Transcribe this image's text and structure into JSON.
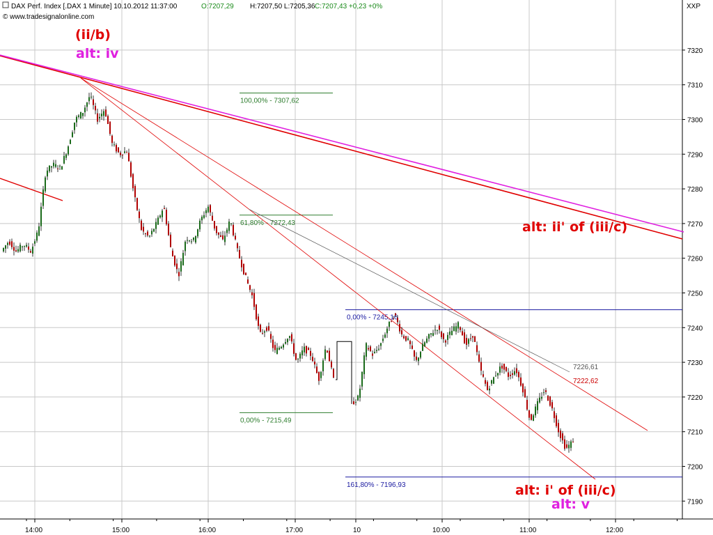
{
  "header": {
    "symbol": "DAX Perf. Index [.DAX  1 Minute] 10.10.2012 11:37:00",
    "open": "O:7207,29",
    "hl": "H:7207,50  L:7205,36",
    "close": "C:7207,43 +0,23 +0%",
    "watermark": "© www.tradesignalonline.com",
    "instrument_code": "XXP"
  },
  "chart_data": {
    "type": "candlestick",
    "title": "DAX Perf. Index [.DAX  1 Minute] 10.10.2012 11:37:00",
    "ylim": [
      7185,
      7333
    ],
    "y_ticks": [
      7190,
      7200,
      7210,
      7220,
      7230,
      7240,
      7250,
      7260,
      7270,
      7280,
      7290,
      7300,
      7310,
      7320
    ],
    "x_tick_labels": [
      "14:00",
      "15:00",
      "16:00",
      "17:00",
      "10",
      "10:00",
      "11:00",
      "12:00"
    ],
    "grid": true,
    "price_path": [
      [
        "13:45",
        7262
      ],
      [
        "13:52",
        7265
      ],
      [
        "14:00",
        7262
      ],
      [
        "14:07",
        7264
      ],
      [
        "14:12",
        7262
      ],
      [
        "14:17",
        7268
      ],
      [
        "14:20",
        7285
      ],
      [
        "14:23",
        7287
      ],
      [
        "14:28",
        7286
      ],
      [
        "14:32",
        7292
      ],
      [
        "14:38",
        7300
      ],
      [
        "14:43",
        7302
      ],
      [
        "14:47",
        7307
      ],
      [
        "14:52",
        7300
      ],
      [
        "14:58",
        7303
      ],
      [
        "15:05",
        7293
      ],
      [
        "15:12",
        7290
      ],
      [
        "15:18",
        7291
      ],
      [
        "15:22",
        7278
      ],
      [
        "15:27",
        7268
      ],
      [
        "15:32",
        7266
      ],
      [
        "15:37",
        7270
      ],
      [
        "15:42",
        7275
      ],
      [
        "15:46",
        7262
      ],
      [
        "15:50",
        7255
      ],
      [
        "15:55",
        7266
      ],
      [
        "16:00",
        7265
      ],
      [
        "16:05",
        7271
      ],
      [
        "16:10",
        7275
      ],
      [
        "16:15",
        7268
      ],
      [
        "16:20",
        7265
      ],
      [
        "16:25",
        7271
      ],
      [
        "16:30",
        7262
      ],
      [
        "16:35",
        7255
      ],
      [
        "16:40",
        7249
      ],
      [
        "16:45",
        7238
      ],
      [
        "16:50",
        7240
      ],
      [
        "16:55",
        7233
      ],
      [
        "17:00",
        7235
      ],
      [
        "17:05",
        7238
      ],
      [
        "17:10",
        7230
      ],
      [
        "17:15",
        7234
      ],
      [
        "17:20",
        7232
      ],
      [
        "17:25",
        7225
      ],
      [
        "17:30",
        7235
      ],
      [
        "17:33",
        7225
      ],
      [
        "10:00 gap",
        7218
      ],
      [
        "09:05",
        7220
      ],
      [
        "09:10",
        7235
      ],
      [
        "09:15",
        7232
      ],
      [
        "09:20",
        7235
      ],
      [
        "09:25",
        7240
      ],
      [
        "09:30",
        7244
      ],
      [
        "09:35",
        7238
      ],
      [
        "09:40",
        7236
      ],
      [
        "09:45",
        7230
      ],
      [
        "09:50",
        7235
      ],
      [
        "09:55",
        7238
      ],
      [
        "10:00",
        7240
      ],
      [
        "10:05",
        7236
      ],
      [
        "10:10",
        7239
      ],
      [
        "10:15",
        7241
      ],
      [
        "10:20",
        7235
      ],
      [
        "10:25",
        7238
      ],
      [
        "10:30",
        7228
      ],
      [
        "10:35",
        7222
      ],
      [
        "10:40",
        7226
      ],
      [
        "10:45",
        7229
      ],
      [
        "10:50",
        7226
      ],
      [
        "10:55",
        7228
      ],
      [
        "11:00",
        7222
      ],
      [
        "11:05",
        7213
      ],
      [
        "11:10",
        7218
      ],
      [
        "11:15",
        7222
      ],
      [
        "11:20",
        7217
      ],
      [
        "11:25",
        7210
      ],
      [
        "11:30",
        7205
      ],
      [
        "11:37",
        7207.43
      ]
    ],
    "fib_levels": [
      {
        "label": "100,00% - 7307,62",
        "value": 7307.62,
        "color": "#2e7d2e"
      },
      {
        "label": "61,80% - 7272,43",
        "value": 7272.43,
        "color": "#2e7d2e"
      },
      {
        "label": "0,00% - 7215,49",
        "value": 7215.49,
        "color": "#2e7d2e"
      },
      {
        "label": "0,00% - 7245,16",
        "value": 7245.16,
        "color": "#1a1aa0"
      },
      {
        "label": "161,80% - 7196,93",
        "value": 7196.93,
        "color": "#1a1aa0"
      }
    ],
    "line_end_labels": [
      {
        "label": "7226,61",
        "value": 7226.61,
        "color": "#555555"
      },
      {
        "label": "7222,62",
        "value": 7222.62,
        "color": "#cc0000"
      }
    ],
    "annotations": [
      {
        "text": "(ii/b)",
        "color": "#e00000"
      },
      {
        "text": "alt: iv",
        "color": "#e020e0"
      },
      {
        "text": "alt: ii' of (iii/c)",
        "color": "#e00000"
      },
      {
        "text": "alt: i' of (iii/c)",
        "color": "#e00000"
      },
      {
        "text": "alt: v",
        "color": "#e020e0"
      }
    ],
    "colors": {
      "up_candle": "#1a6a1a",
      "down_candle": "#b00000",
      "trendline_red": "#e00000",
      "trendline_magenta": "#e020e0",
      "grid": "#c8c8c8"
    }
  }
}
